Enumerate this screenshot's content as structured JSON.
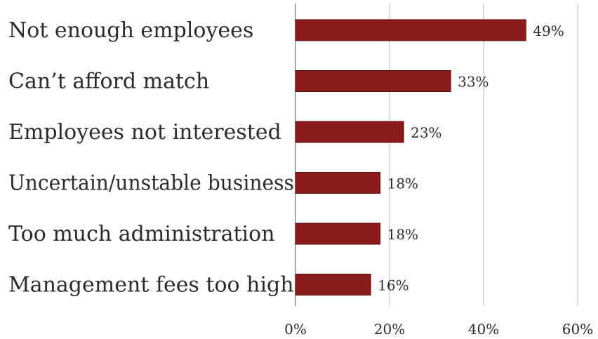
{
  "chart_data": {
    "type": "bar",
    "orientation": "horizontal",
    "title": "",
    "xlabel": "",
    "ylabel": "",
    "categories": [
      "Not enough employees",
      "Can’t afford match",
      "Employees not interested",
      "Uncertain/unstable business",
      "Too much administration",
      "Management fees too high"
    ],
    "values": [
      49,
      33,
      23,
      18,
      18,
      16
    ],
    "value_labels": [
      "49%",
      "33%",
      "23%",
      "18%",
      "18%",
      "16%"
    ],
    "xlim": [
      0,
      60
    ],
    "xticks": [
      0,
      20,
      40,
      60
    ],
    "xtick_labels": [
      "0%",
      "20%",
      "40%",
      "60%"
    ],
    "grid": "vertical",
    "legend": "none",
    "colors": {
      "bar": "#8b1a1a",
      "bar_edge": "#5e0f0f",
      "grid": "#b5b5b5",
      "axis": "#8c8c8c"
    }
  }
}
